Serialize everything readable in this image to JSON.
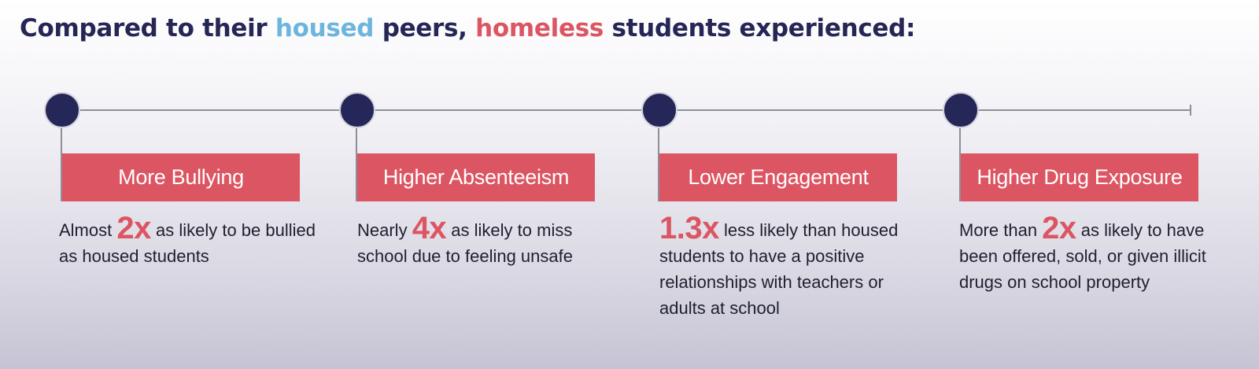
{
  "headline": {
    "pre": "Compared to their ",
    "housed": "housed",
    "mid": " peers, ",
    "homeless": "homeless",
    "post": " students experienced:"
  },
  "items": [
    {
      "title": "More Bullying",
      "pre": "Almost ",
      "big": "2x",
      "post": " as likely to be bullied as housed students"
    },
    {
      "title": "Higher Absenteeism",
      "pre": "Nearly ",
      "big": "4x",
      "post": " as likely to miss school due to feeling unsafe"
    },
    {
      "title": "Lower Engagement",
      "pre": "",
      "big": "1.3x",
      "post": " less likely than housed students to have a positive relationships with teachers or adults at school"
    },
    {
      "title": "Higher Drug Exposure",
      "pre": "More than ",
      "big": "2x",
      "post": " as likely to have been offered, sold, or given illicit drugs on school property"
    }
  ],
  "colors": {
    "navy": "#262656",
    "housed_blue": "#6cb5de",
    "homeless_red": "#dc5562"
  }
}
